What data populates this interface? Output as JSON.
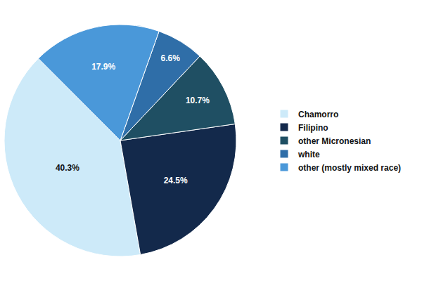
{
  "chart_data": {
    "type": "pie",
    "categories": [
      "Chamorro",
      "Filipino",
      "other Micronesian",
      "white",
      "other (mostly mixed race)"
    ],
    "values": [
      40.3,
      24.5,
      10.7,
      6.6,
      17.9
    ],
    "value_labels": [
      "40.3%",
      "24.5%",
      "10.7%",
      "6.6%",
      "17.9%"
    ],
    "colors": [
      "#cdeaf9",
      "#13294b",
      "#1f4f63",
      "#2f6ea8",
      "#4a98d9"
    ],
    "data_labels": true,
    "legend": "right"
  }
}
